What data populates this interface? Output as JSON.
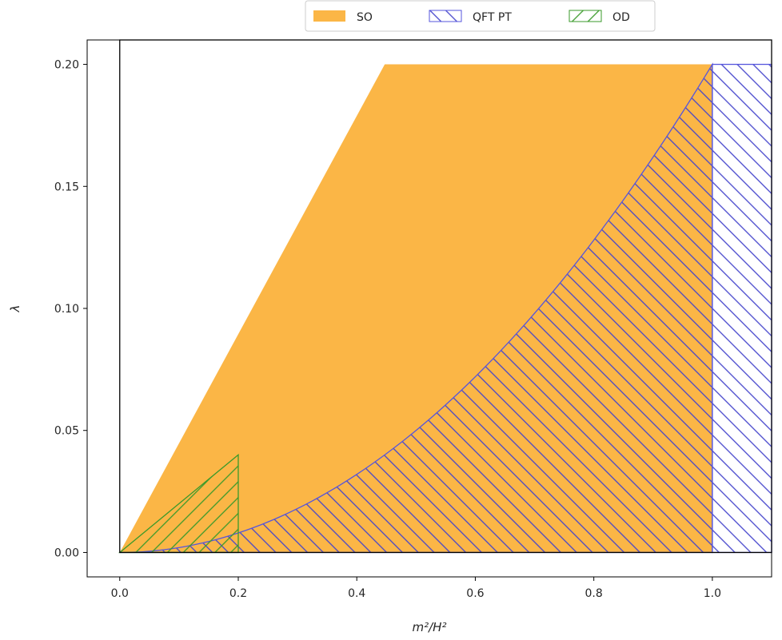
{
  "chart_data": {
    "type": "area",
    "xlabel": "m²/H²",
    "ylabel": "λ",
    "xlim": [
      -0.055,
      1.1
    ],
    "ylim": [
      -0.01,
      0.21
    ],
    "xticks": [
      "0.0",
      "0.2",
      "0.4",
      "0.6",
      "0.8",
      "1.0"
    ],
    "yticks": [
      "0.00",
      "0.05",
      "0.10",
      "0.15",
      "0.20"
    ],
    "grid": false,
    "legend_position": "top-center",
    "legend": [
      "SO",
      "QFT PT",
      "OD"
    ],
    "regions": [
      {
        "name": "SO",
        "style": "filled",
        "color": "#fbb646",
        "polygon": [
          [
            0.0,
            0.0
          ],
          [
            0.4472,
            0.2
          ],
          [
            1.0,
            0.2
          ],
          [
            1.0,
            0.0
          ]
        ]
      },
      {
        "name": "QFT PT",
        "style": "hatched-backslash",
        "color": "#5555dd",
        "lower": 0.0,
        "upper_curve": "0.2 * x^2",
        "x_range": [
          0.0,
          1.0
        ],
        "extension_rect": {
          "x": [
            1.0,
            1.1
          ],
          "y": [
            0.0,
            0.2
          ]
        }
      },
      {
        "name": "OD",
        "style": "hatched-slash",
        "color": "#3a9a2a",
        "polygon": [
          [
            0.0,
            0.0
          ],
          [
            0.2,
            0.04
          ],
          [
            0.2,
            0.0
          ]
        ]
      }
    ],
    "reference_box": {
      "x": [
        0.0,
        1.1
      ],
      "y": [
        0.0,
        0.21
      ]
    }
  }
}
